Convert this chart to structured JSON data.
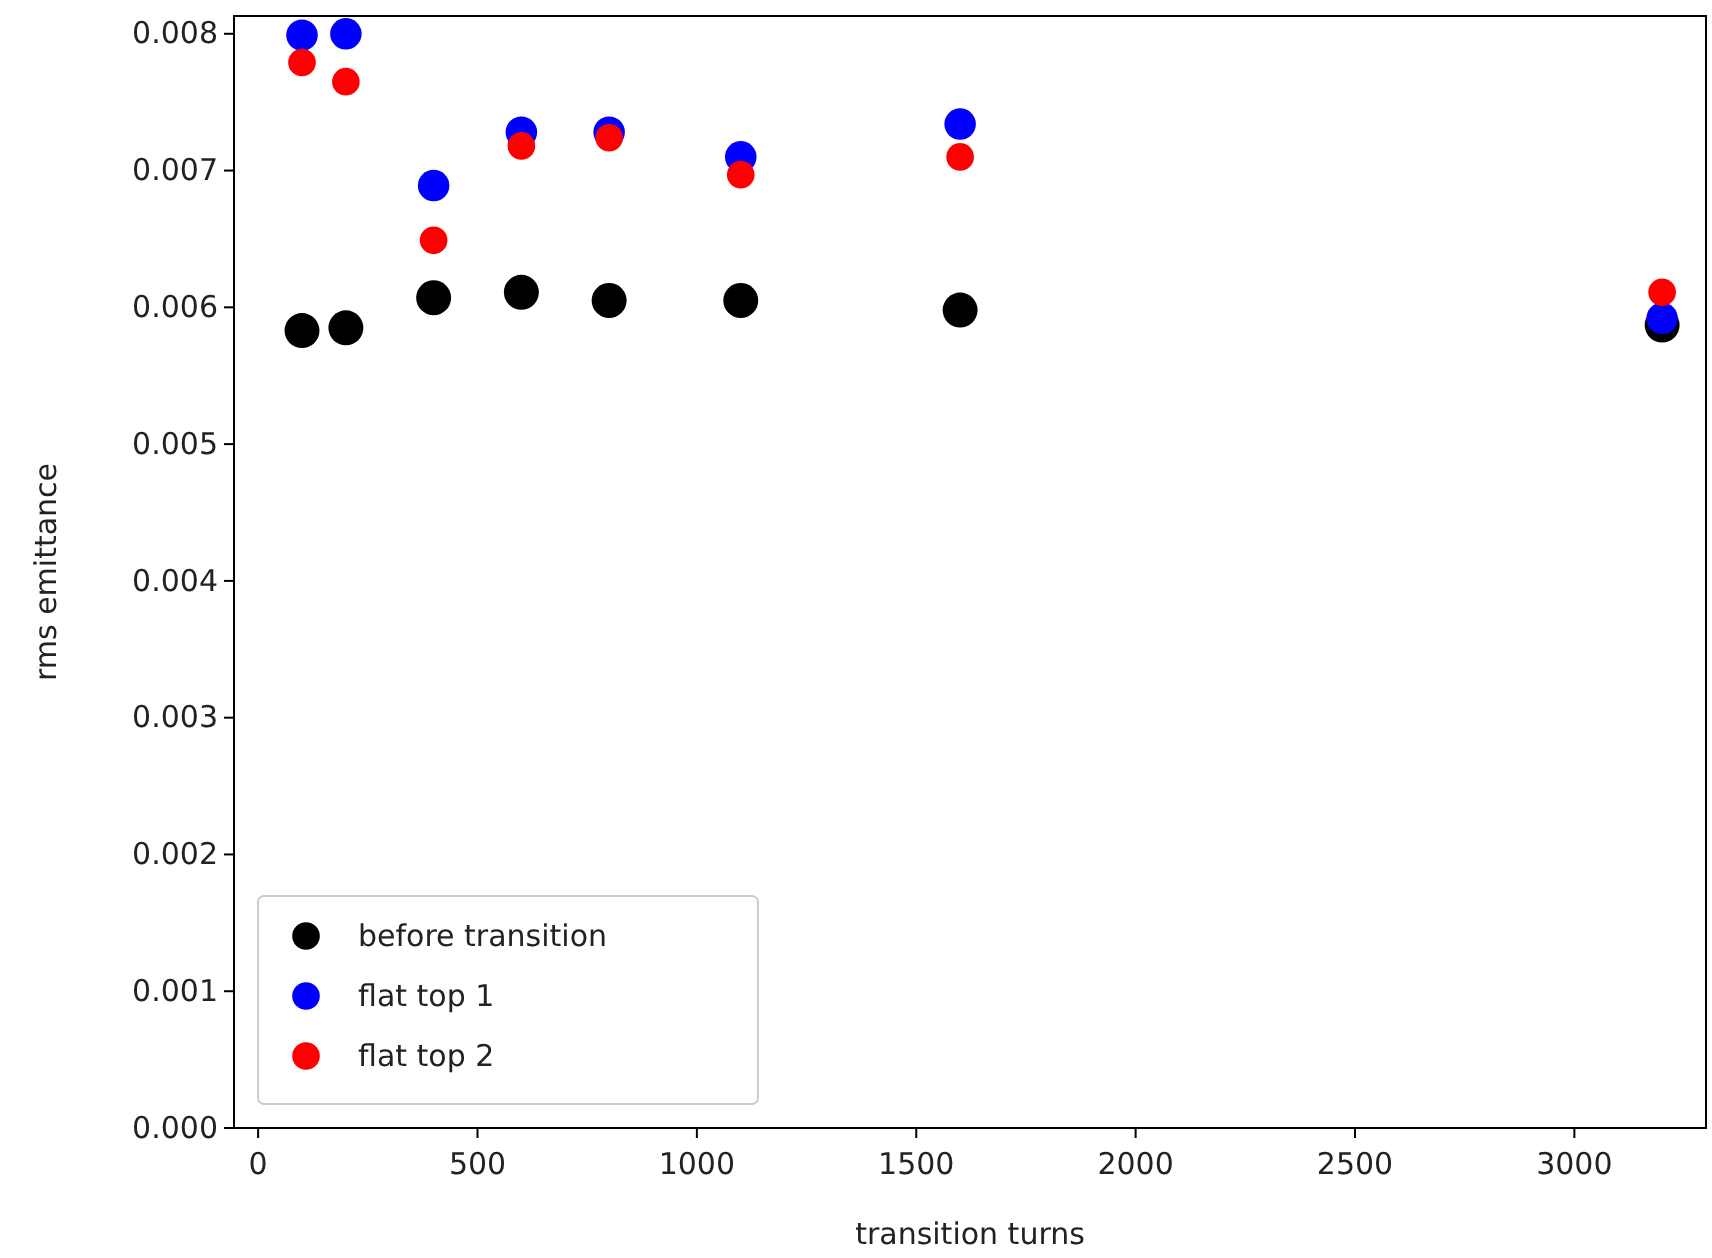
{
  "chart_data": {
    "type": "scatter",
    "xlabel": "transition turns",
    "ylabel": "rms emittance",
    "x": [
      100,
      200,
      400,
      600,
      800,
      1100,
      1600,
      3200
    ],
    "series": [
      {
        "name": "before transition",
        "color": "#000000",
        "values": [
          0.00583,
          0.00585,
          0.00607,
          0.00611,
          0.00605,
          0.00605,
          0.00598,
          0.00587
        ]
      },
      {
        "name": "flat top 1",
        "color": "#0000ff",
        "values": [
          0.00799,
          0.008,
          0.00689,
          0.00728,
          0.00728,
          0.0071,
          0.00734,
          0.00592
        ]
      },
      {
        "name": "flat top 2",
        "color": "#ff0000",
        "values": [
          0.00779,
          0.00765,
          0.00649,
          0.00718,
          0.00724,
          0.00697,
          0.0071,
          0.00611
        ]
      }
    ],
    "xlim": [
      -55,
      3300
    ],
    "xticks": [
      0,
      500,
      1000,
      1500,
      2000,
      2500,
      3000
    ],
    "ylim": [
      0,
      0.00813
    ],
    "yticks": [
      {
        "value": 0,
        "label": "0.000"
      },
      {
        "value": 0.001,
        "label": "0.001"
      },
      {
        "value": 0.002,
        "label": "0.002"
      },
      {
        "value": 0.003,
        "label": "0.003"
      },
      {
        "value": 0.004,
        "label": "0.004"
      },
      {
        "value": 0.005,
        "label": "0.005"
      },
      {
        "value": 0.006,
        "label": "0.006"
      },
      {
        "value": 0.007,
        "label": "0.007"
      },
      {
        "value": 0.008,
        "label": "0.008"
      }
    ],
    "legend": "bottom left",
    "marker": "circle"
  }
}
